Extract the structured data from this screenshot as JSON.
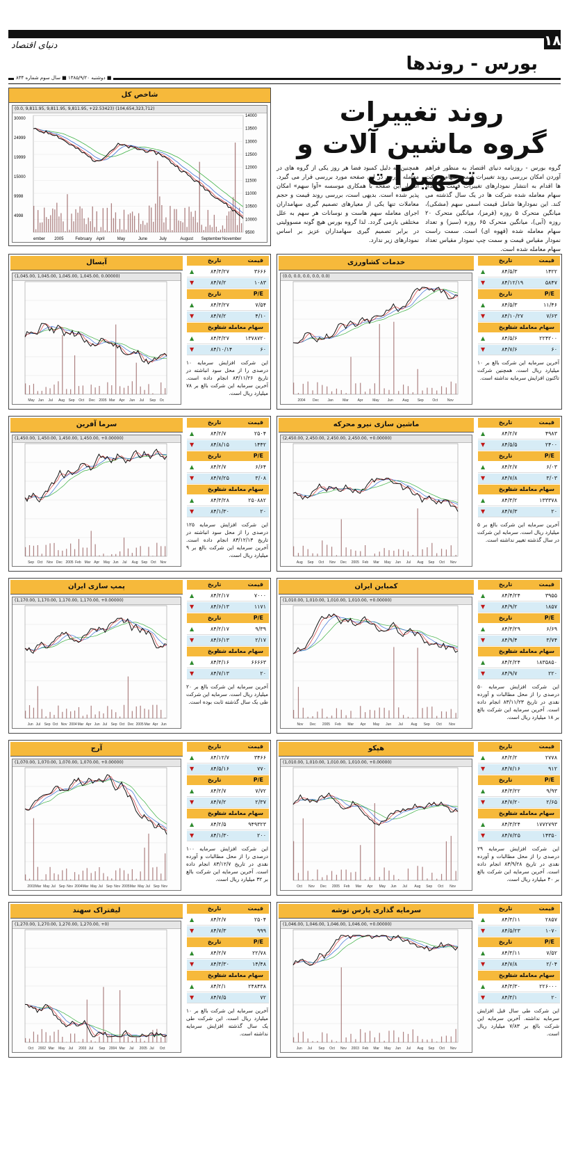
{
  "header": {
    "page_number": "۱۸",
    "logo": "دنیای اقتصاد",
    "section": "بورس - روندها",
    "dateline": "■ دوشنبه ۱۳۸۵/۹/۲۰ ■ سال سوم شماره ۸۳۴"
  },
  "article": {
    "title_line1": "روند تغییرات",
    "title_line2": "گروه ماشین آلات و تجهیزات",
    "col1": "گروه بورس - روزنامه دنیای اقتصاد به منظور فراهم آوردن امکان بررسی روند تغییرات قیمت سهام شرکت ها اقدام به انتشار نمودارهای تغییرات قیمت و تعداد سهام معامله شده شرکت ها در یک سال گذشته می کند. این نمودارها شامل قیمت اسمی سهم (مشکی)، میانگین متحرک ۵ روزه (قرمز)، میانگین متحرک ۲۰ روزه (آبی)، میانگین متحرک ۶۵ روزه (سبز) و تعداد سهام معامله شده (قهوه ای) است. سمت راست نمودار مقیاس قیمت و سمت چپ نمودار مقیاس تعداد سهام معامله شده است.",
    "col2": "همچنین به دلیل کمبود فضا هر روز یکی از گروه های در معامله بورس در این صفحه مورد بررسی قرار می گیرد. انتشار این صفحه با همکاری موسسه «آوا سهم» امکان پذیر شده است. بدیهی است، بررسی روند قیمت و حجم معاملات تنها یکی از معیارهای تصمیم گیری سهامداران اجرای معامله سهم هاست و نوسانات هر سهم به علل مختلفی بازمی گردد. لذا گروه بورس هیچ گونه مسوولیتی در برابر تصمیم گیری سهامداران عزیز بر اساس نمودارهای زیر ندارد."
  },
  "index_chart": {
    "title": "شاخص کل",
    "legend": "(0.0, 9,811.95, 9,811.95, 9,811.95, +22.53423)    (104,654,323,712)",
    "right_ticks": [
      "14000",
      "13500",
      "13000",
      "12500",
      "12000",
      "11500",
      "11000",
      "10500",
      "10000",
      "9500"
    ],
    "left_ticks": [
      "30000",
      "24999",
      "19999",
      "15000",
      "9998",
      "4998"
    ],
    "x_labels": [
      "ember",
      "2005",
      "February",
      "April",
      "May",
      "June",
      "July",
      "August",
      "September",
      "November"
    ]
  },
  "panels": [
    {
      "title": "خدمات کشاورزی",
      "legend": "(0.0, 0.0, 0.0, 0.0, 0.0)",
      "stats": {
        "h1": [
          "قیمت",
          "تاریخ"
        ],
        "r1": [
          {
            "v": "۱۴۲۲",
            "d": "۸۴/۵/۳",
            "a": "▲"
          },
          {
            "v": "۵۸۴۷",
            "d": "۸۴/۱۲/۱۹",
            "a": "▼"
          }
        ],
        "h2": [
          "P/E",
          "تاریخ"
        ],
        "r2": [
          {
            "v": "۱۱/۴۶",
            "d": "۸۴/۵/۳",
            "a": "▲"
          },
          {
            "v": "۷/۶۳",
            "d": "۸۴/۱۰/۲۷",
            "a": "▼"
          }
        ],
        "h3": [
          "سهام معامله شده",
          "تاریخ"
        ],
        "r3": [
          {
            "v": "۲۲۴۲۰۰",
            "d": "۸۴/۵/۶",
            "a": "▲"
          },
          {
            "v": "۶۰",
            "d": "۸۴/۷/۶",
            "a": "▼"
          }
        ]
      },
      "note": "آخرین سرمایه این شرکت بالغ بر ۱۰ میلیارد ریال است. همچنین شرکت تاکنون افزایش سرمایه نداشته است.",
      "x_labels": [
        "2004",
        "Dec",
        "Jan",
        "Mar",
        "Apr",
        "May",
        "Jun",
        "Aug",
        "Sep",
        "Oct",
        "Nov"
      ]
    },
    {
      "title": "آبسال",
      "legend": "(1,045.00, 1,045.00, 1,045.00, 1,045.00, 0.00000)",
      "stats": {
        "h1": [
          "قیمت",
          "تاریخ"
        ],
        "r1": [
          {
            "v": "۳۶۶۶",
            "d": "۸۴/۳/۲۷",
            "a": "▲"
          },
          {
            "v": "۱۰۸۳",
            "d": "۸۴/۷/۲",
            "a": "▼"
          }
        ],
        "h2": [
          "P/E",
          "تاریخ"
        ],
        "r2": [
          {
            "v": "۷/۵۴",
            "d": "۸۴/۳/۲۷",
            "a": "▲"
          },
          {
            "v": "۴/۱۰",
            "d": "۸۴/۷/۲",
            "a": "▼"
          }
        ],
        "h3": [
          "سهام معامله شده",
          "تاریخ"
        ],
        "r3": [
          {
            "v": "۱۳۷۸۷۲۰",
            "d": "۸۴/۳/۲۷",
            "a": "▲"
          },
          {
            "v": "۶۰",
            "d": "۸۴/۱۰/۱۴",
            "a": "▼"
          }
        ]
      },
      "note": "این شرکت افزایش سرمایه ۱۰ درصدی را از محل سود انباشته در تاریخ ۸۳/۱۱/۲۶ انجام داده است. آخرین سرمایه این شرکت بالغ بر ۷۸ میلیارد ریال است.",
      "x_labels": [
        "May",
        "Jun",
        "Jul",
        "Aug",
        "Sep",
        "Oct",
        "Dec",
        "2005",
        "Mar",
        "Apr",
        "Jun",
        "Jul",
        "Sep",
        "Oc"
      ]
    },
    {
      "title": "ماشین سازی نیرو محرکه",
      "legend": "(2,450.00, 2,450.00, 2,450.00, 2,450.00, +0.00000)",
      "stats": {
        "h1": [
          "قیمت",
          "تاریخ"
        ],
        "r1": [
          {
            "v": "۴۹۸۳",
            "d": "۸۴/۲/۷",
            "a": "▲"
          },
          {
            "v": "۲۴۰۰",
            "d": "۸۴/۵/۵",
            "a": "▼"
          }
        ],
        "h2": [
          "P/E",
          "تاریخ"
        ],
        "r2": [
          {
            "v": "۶/۰۳",
            "d": "۸۴/۲/۷",
            "a": "▲"
          },
          {
            "v": "۳/۰۳",
            "d": "۸۴/۷/۸",
            "a": "▼"
          }
        ],
        "h3": [
          "سهام معامله شده",
          "تاریخ"
        ],
        "r3": [
          {
            "v": "۱۳۳۳۷۸",
            "d": "۸۴/۳/۲",
            "a": "▲"
          },
          {
            "v": "۲۰",
            "d": "۸۴/۷/۳",
            "a": "▼"
          }
        ]
      },
      "note": "آخرین سرمایه این شرکت بالغ بر ۵ میلیارد ریال است. سرمایه این شرکت در سال گذشته تغییر نداشته است.",
      "x_labels": [
        "Aug",
        "Sep",
        "Oct",
        "Nov",
        "Dec",
        "2005",
        "Feb",
        "Mar",
        "May",
        "Jun",
        "Jul",
        "Aug",
        "Sep",
        "Oct",
        "Nov"
      ]
    },
    {
      "title": "سرما آفرین",
      "legend": "(1,450.00, 1,450.00, 1,450.00, 1,450.00, +0.00000)",
      "stats": {
        "h1": [
          "قیمت",
          "تاریخ"
        ],
        "r1": [
          {
            "v": "۲۵۰۴",
            "d": "۸۴/۲/۷",
            "a": "▲"
          },
          {
            "v": "۱۴۴۲",
            "d": "۸۴/۸/۱۵",
            "a": "▼"
          }
        ],
        "h2": [
          "P/E",
          "تاریخ"
        ],
        "r2": [
          {
            "v": "۶/۶۴",
            "d": "۸۴/۲/۷",
            "a": "▲"
          },
          {
            "v": "۳/۰۸",
            "d": "۸۴/۷/۲۵",
            "a": "▼"
          }
        ],
        "h3": [
          "سهام معامله شده",
          "تاریخ"
        ],
        "r3": [
          {
            "v": "۲۵۰۸۸۲",
            "d": "۸۴/۳/۲۸",
            "a": "▲"
          },
          {
            "v": "۲۰",
            "d": "۸۴/۱/۳۰",
            "a": "▼"
          }
        ]
      },
      "note": "این شرکت افزایش سرمایه ۱۲۵ درصدی را از محل سود انباشته در تاریخ ۸۳/۱۲/۱۳ انجام داده است. آخرین سرمایه این شرکت بالغ بر ۹ میلیارد ریال است.",
      "x_labels": [
        "Sep",
        "Oct",
        "Nov",
        "Dec",
        "2005",
        "Feb",
        "Mar",
        "Apr",
        "May",
        "Jun",
        "Jul",
        "Aug",
        "Sep",
        "Oct",
        "Nov"
      ]
    },
    {
      "title": "کمباین ایران",
      "legend": "(1,010.00, 1,010.00, 1,010.00, 1,010.00, +0.00000)",
      "stats": {
        "h1": [
          "قیمت",
          "تاریخ"
        ],
        "r1": [
          {
            "v": "۳۹۵۵",
            "d": "۸۴/۴/۲۴",
            "a": "▲"
          },
          {
            "v": "۱۸۵۷",
            "d": "۸۴/۹/۲",
            "a": "▼"
          }
        ],
        "h2": [
          "P/E",
          "تاریخ"
        ],
        "r2": [
          {
            "v": "۶/۶۹",
            "d": "۸۴/۳/۲۹",
            "a": "▲"
          },
          {
            "v": "۳/۷۴",
            "d": "۸۴/۹/۴",
            "a": "▼"
          }
        ],
        "h3": [
          "سهام معامله شده",
          "تاریخ"
        ],
        "r3": [
          {
            "v": "۱۸۳۵۸۵۰",
            "d": "۸۴/۲/۲۴",
            "a": "▲"
          },
          {
            "v": "۲۲۰",
            "d": "۸۴/۹/۷",
            "a": "▼"
          }
        ]
      },
      "note": "این شرکت افزایش سرمایه ۵۰ درصدی را از محل مطالبات و آورده نقدی در تاریخ ۸۳/۱۱/۲۳ انجام داده است. آخرین سرمایه این شرکت بالغ بر ۱۸ میلیارد ریال است.",
      "x_labels": [
        "Nov",
        "Dec",
        "2005",
        "Feb",
        "Mar",
        "Apr",
        "May",
        "Jun",
        "Jul",
        "Aug",
        "Sep",
        "Oct",
        "Nov"
      ]
    },
    {
      "title": "پمپ سازی ایران",
      "legend": "(1,170.00, 1,170.00, 1,170.00, 1,170.00, +0.00000)",
      "stats": {
        "h1": [
          "قیمت",
          "تاریخ"
        ],
        "r1": [
          {
            "v": "۷۰۰۰",
            "d": "۸۴/۲/۱۷",
            "a": "▲"
          },
          {
            "v": "۱۱۷۱",
            "d": "۸۴/۶/۱۳",
            "a": "▼"
          }
        ],
        "h2": [
          "P/E",
          "تاریخ"
        ],
        "r2": [
          {
            "v": "۹/۳۹",
            "d": "۸۴/۲/۱۷",
            "a": "▲"
          },
          {
            "v": "۲/۱۷",
            "d": "۸۴/۶/۱۳",
            "a": "▼"
          }
        ],
        "h3": [
          "سهام معامله شده",
          "تاریخ"
        ],
        "r3": [
          {
            "v": "۶۶۶۶۳",
            "d": "۸۴/۳/۱۶",
            "a": "▲"
          },
          {
            "v": "۲۰",
            "d": "۸۴/۷/۱۳",
            "a": "▼"
          }
        ]
      },
      "note": "آخرین سرمایه این شرکت بالغ بر ۲۰ میلیارد ریال است. سرمایه این شرکت طی یک سال گذشته ثابت بوده است.",
      "x_labels": [
        "Jun",
        "Jul",
        "Sep",
        "Oct",
        "Nov",
        "2004",
        "Mar",
        "Apr",
        "Jun",
        "Jul",
        "Sep",
        "Oct",
        "Dec",
        "2005",
        "Mar",
        "Apr",
        "Jun"
      ]
    },
    {
      "title": "هپکو",
      "legend": "(1,010.00, 1,010.00, 1,010.00, 1,010.00, +0.00000)",
      "stats": {
        "h1": [
          "قیمت",
          "تاریخ"
        ],
        "r1": [
          {
            "v": "۲۷۷۸",
            "d": "۸۴/۲/۲",
            "a": "▲"
          },
          {
            "v": "۹۱۲",
            "d": "۸۴/۷/۱۶",
            "a": "▼"
          }
        ],
        "h2": [
          "P/E",
          "تاریخ"
        ],
        "r2": [
          {
            "v": "۹/۹۳",
            "d": "۸۴/۳/۲۲",
            "a": "▲"
          },
          {
            "v": "۲/۶۵",
            "d": "۸۴/۷/۲۰",
            "a": "▼"
          }
        ],
        "h3": [
          "سهام معامله شده",
          "تاریخ"
        ],
        "r3": [
          {
            "v": "۱۷۷۲۷۹۳",
            "d": "۸۴/۳/۲۴",
            "a": "▲"
          },
          {
            "v": "۱۴۳۵۰",
            "d": "۸۴/۷/۲۵",
            "a": "▼"
          }
        ]
      },
      "note": "این شرکت افزایش سرمایه ۲۹ درصدی را از محل مطالبات و آورده نقدی در تاریخ ۸۳/۹/۲۸ انجام داده است. آخرین سرمایه این شرکت بالغ بر ۴۰ میلیارد ریال است.",
      "x_labels": [
        "Oct",
        "Nov",
        "Dec",
        "2005",
        "Feb",
        "Mar",
        "Apr",
        "May",
        "Jun",
        "Jul",
        "Aug",
        "Sep",
        "Oct",
        "Nov"
      ]
    },
    {
      "title": "آرج",
      "legend": "(1,070.00, 1,070.00, 1,070.00, 1,070.00, +0.00000)",
      "stats": {
        "h1": [
          "قیمت",
          "تاریخ"
        ],
        "r1": [
          {
            "v": "۳۴۶۶",
            "d": "۸۴/۱۲/۷",
            "a": "▲"
          },
          {
            "v": "۷۷۰",
            "d": "۸۴/۵/۱۶",
            "a": "▼"
          }
        ],
        "h2": [
          "P/E",
          "تاریخ"
        ],
        "r2": [
          {
            "v": "۷/۷۲",
            "d": "۸۴/۲/۷",
            "a": "▲"
          },
          {
            "v": "۲/۳۷",
            "d": "۸۴/۷/۲",
            "a": "▼"
          }
        ],
        "h3": [
          "سهام معامله شده",
          "تاریخ"
        ],
        "r3": [
          {
            "v": "۹۴۹۳۲۳",
            "d": "۸۴/۲/۵",
            "a": "▲"
          },
          {
            "v": "۲۰۰",
            "d": "۸۴/۱/۳۰",
            "a": "▼"
          }
        ]
      },
      "note": "این شرکت افزایش سرمایه ۱۰۰ درصدی را از محل مطالبات و آورده نقدی در تاریخ ۸۳/۱۲/۷ انجام داده است. آخرین سرمایه این شرکت بالغ بر ۳۲ میلیارد ریال است.",
      "x_labels": [
        "2003",
        "Mar",
        "May",
        "Jul",
        "Sep",
        "Nov",
        "2004",
        "Mar",
        "May",
        "Jul",
        "Sep",
        "Nov",
        "2005",
        "Mar",
        "May",
        "Jul",
        "Sep",
        "Nov"
      ]
    },
    {
      "title": "سرمایه گذاری پارس توشه",
      "legend": "(1,046.00, 1,046.00, 1,046.00, 1,046.00, +0.00000)",
      "stats": {
        "h1": [
          "قیمت",
          "تاریخ"
        ],
        "r1": [
          {
            "v": "۲۸۵۷",
            "d": "۸۴/۳/۱۱",
            "a": "▲"
          },
          {
            "v": "۱۰۷۰",
            "d": "۸۴/۵/۲۳",
            "a": "▼"
          }
        ],
        "h2": [
          "P/E",
          "تاریخ"
        ],
        "r2": [
          {
            "v": "۷/۵۲",
            "d": "۸۴/۳/۱۱",
            "a": "▲"
          },
          {
            "v": "۲/۰۴",
            "d": "۸۴/۷/۸",
            "a": "▼"
          }
        ],
        "h3": [
          "سهام معامله شده",
          "تاریخ"
        ],
        "r3": [
          {
            "v": "۲۲۶۰۰۰",
            "d": "۸۴/۳/۳۰",
            "a": "▲"
          },
          {
            "v": "۲۰",
            "d": "۸۴/۳/۱",
            "a": "▼"
          }
        ]
      },
      "note": "این شرکت طی سال قبل افزایش سرمایه نداشته. آخرین سرمایه این شرکت بالغ بر ۷/۸۳ میلیارد ریال است.",
      "x_labels": [
        "Jun",
        "Jul",
        "Sep",
        "Oct",
        "Nov",
        "2003",
        "Feb",
        "Mar",
        "May",
        "Jun",
        "Jul",
        "Aug",
        "Sep",
        "Oct",
        "Nov"
      ]
    },
    {
      "title": "لیفتراک سهند",
      "legend": "(1,270.00, 1,270.00, 1,270.00, 1,270.00, +0)",
      "stats": {
        "h1": [
          "قیمت",
          "تاریخ"
        ],
        "r1": [
          {
            "v": "۲۵۰۴",
            "d": "۸۴/۲/۷",
            "a": "▲"
          },
          {
            "v": "۹۹۹",
            "d": "۸۴/۷/۳",
            "a": "▼"
          }
        ],
        "h2": [
          "P/E",
          "تاریخ"
        ],
        "r2": [
          {
            "v": "۲۲/۷۸",
            "d": "۸۴/۲/۷",
            "a": "▲"
          },
          {
            "v": "۱۴/۴۸",
            "d": "۸۴/۳/۳۰",
            "a": "▼"
          }
        ],
        "h3": [
          "سهام معامله شده",
          "تاریخ"
        ],
        "r3": [
          {
            "v": "۲۴۸۴۳۸",
            "d": "۸۴/۲/۱",
            "a": "▲"
          },
          {
            "v": "۷۲",
            "d": "۸۴/۷/۵",
            "a": "▼"
          }
        ]
      },
      "note": "آخرین سرمایه این شرکت بالغ بر ۱۰ میلیارد ریال است. این شرکت طی یک سال گذشته افزایش سرمایه نداشته است.",
      "x_labels": [
        "Oct",
        "2002",
        "Mar",
        "May",
        "Jul",
        "2003",
        "Jul",
        "Sep",
        "2004",
        "Mar",
        "Jul",
        "2005",
        "Jul",
        "Oct"
      ]
    }
  ]
}
